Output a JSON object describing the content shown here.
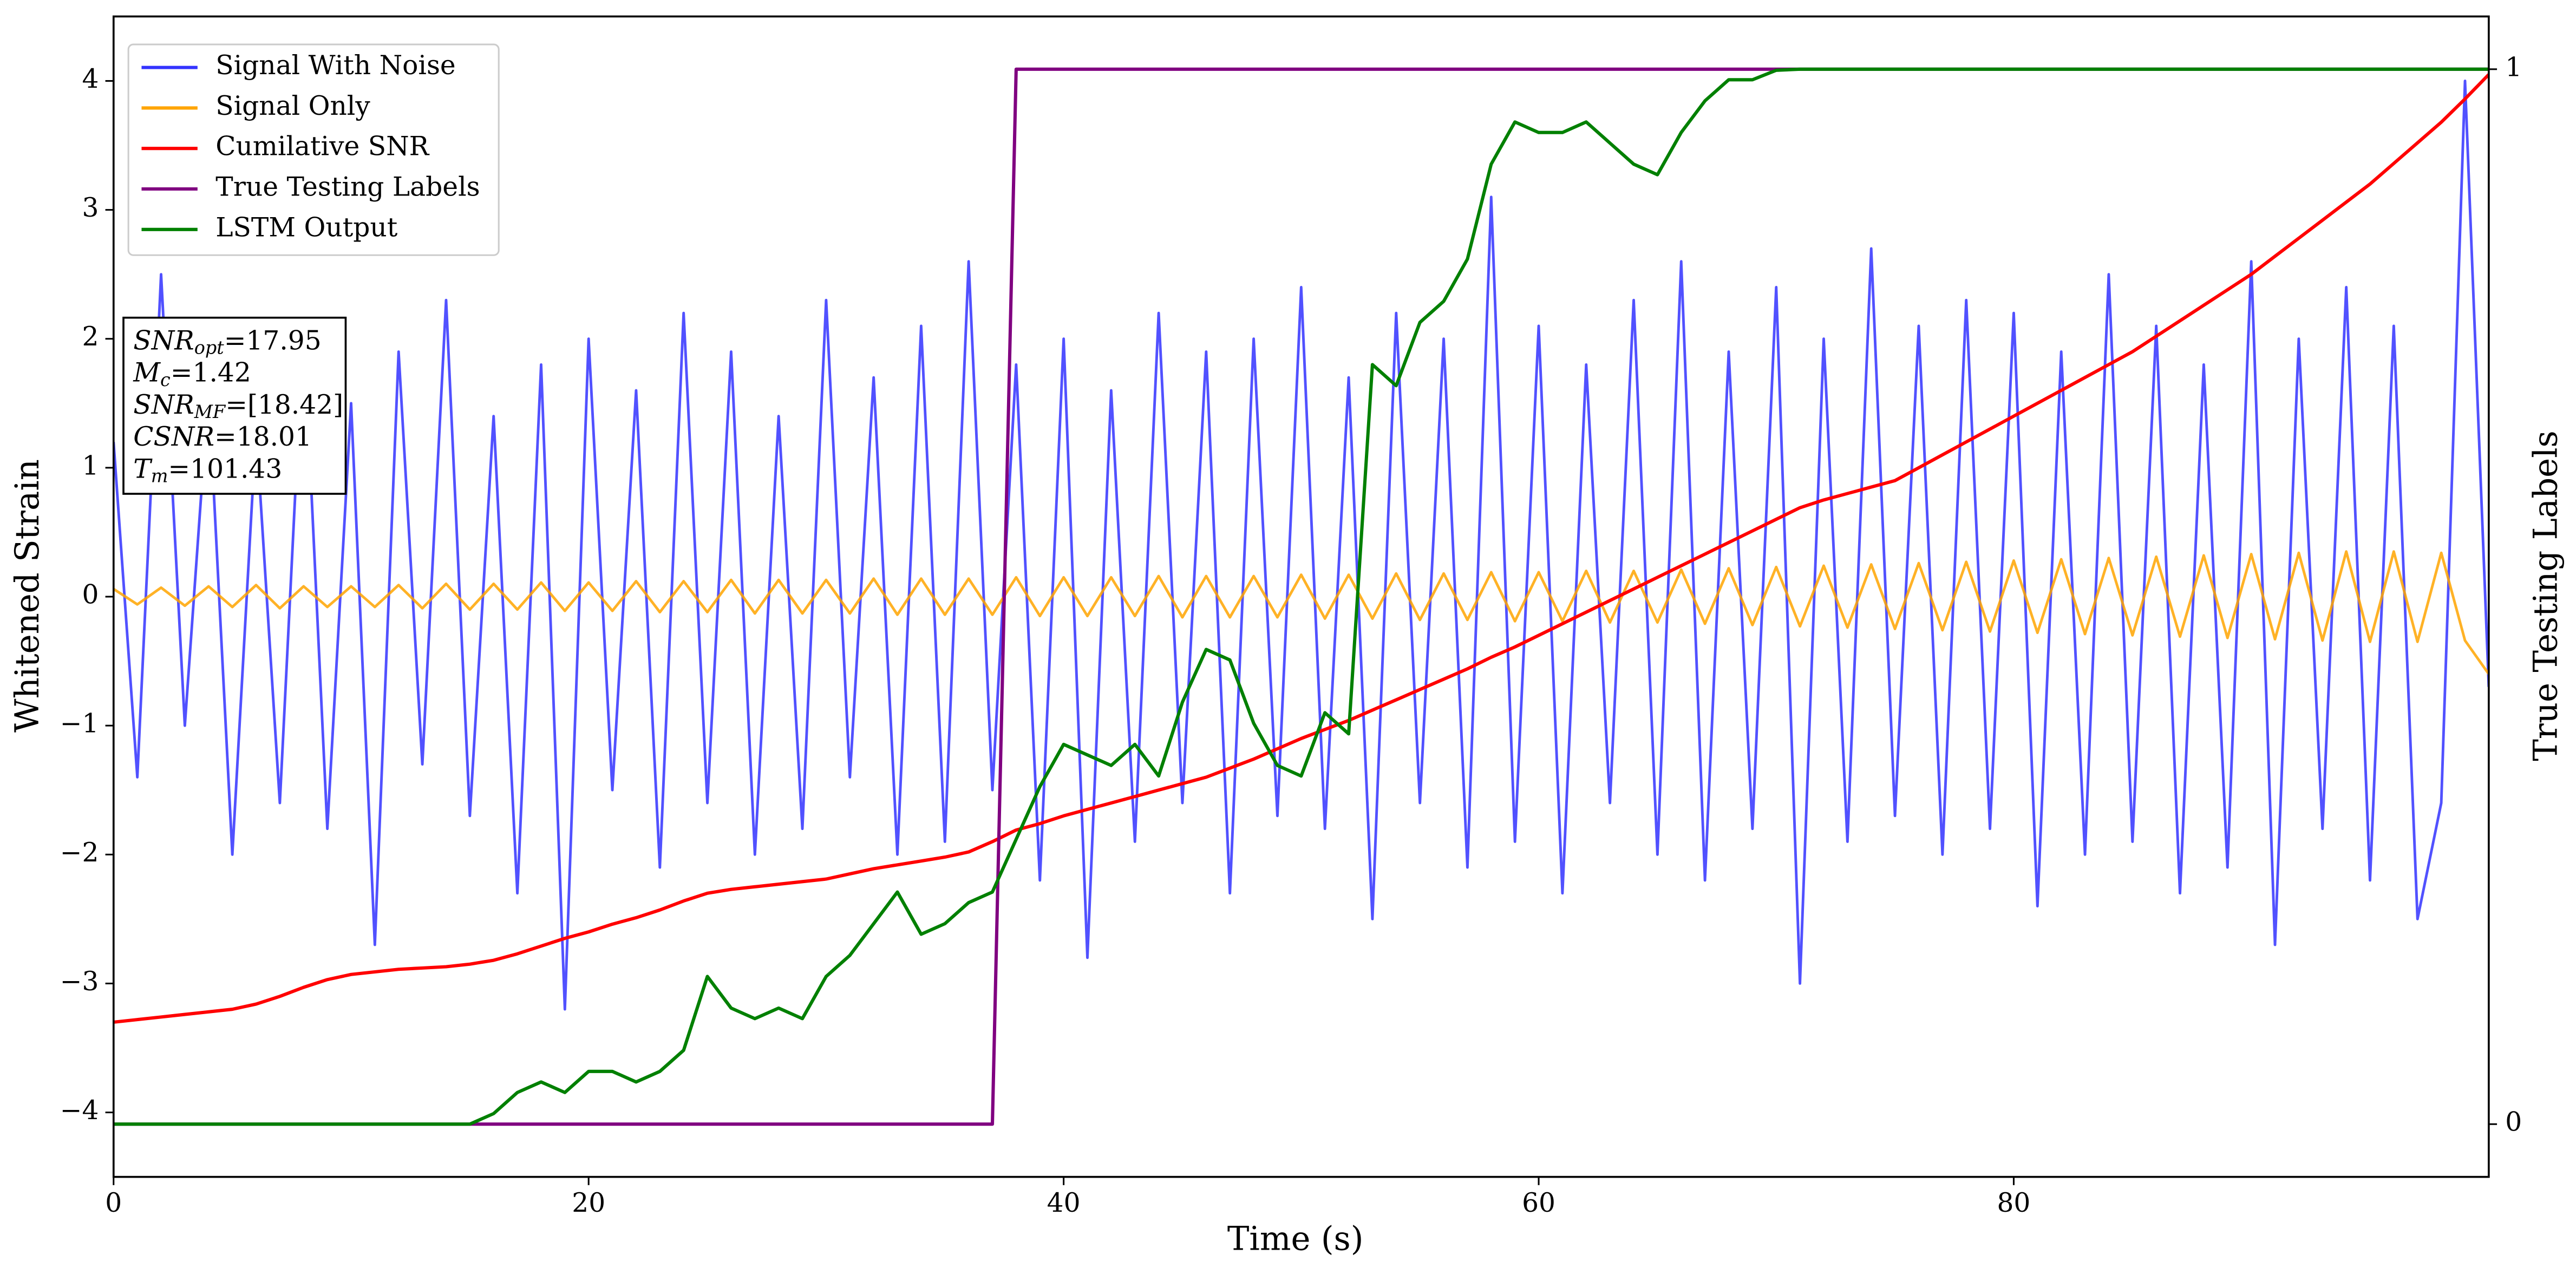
{
  "chart_data": {
    "type": "line",
    "xlabel": "Time (s)",
    "ylabel": "Whitened Strain",
    "y2label": "True Testing Labels",
    "xlim": [
      0,
      100
    ],
    "ylim": [
      -4.5,
      4.5
    ],
    "y2lim": [
      -0.05,
      1.05
    ],
    "xticks": [
      0,
      20,
      40,
      60,
      80
    ],
    "yticks": [
      {
        "value": -4,
        "label": "−4"
      },
      {
        "value": -3,
        "label": "−3"
      },
      {
        "value": -2,
        "label": "−2"
      },
      {
        "value": -1,
        "label": "−1"
      },
      0,
      1,
      2,
      3,
      4
    ],
    "y2ticks": [
      0,
      1
    ],
    "legend": "upper left",
    "x": [
      0,
      1,
      2,
      3,
      4,
      5,
      6,
      7,
      8,
      9,
      10,
      11,
      12,
      13,
      14,
      15,
      16,
      17,
      18,
      19,
      20,
      21,
      22,
      23,
      24,
      25,
      26,
      27,
      28,
      29,
      30,
      31,
      32,
      33,
      34,
      35,
      36,
      37,
      38,
      39,
      40,
      41,
      42,
      43,
      44,
      45,
      46,
      47,
      48,
      49,
      50,
      51,
      52,
      53,
      54,
      55,
      56,
      57,
      58,
      59,
      60,
      61,
      62,
      63,
      64,
      65,
      66,
      67,
      68,
      69,
      70,
      71,
      72,
      73,
      74,
      75,
      76,
      77,
      78,
      79,
      80,
      81,
      82,
      83,
      84,
      85,
      86,
      87,
      88,
      89,
      90,
      91,
      92,
      93,
      94,
      95,
      96,
      97,
      98,
      99,
      100
    ],
    "series": [
      {
        "name": "Signal With Noise",
        "color": "#3333ff",
        "values": [
          1.2,
          -1.4,
          2.5,
          -1.0,
          1.6,
          -2.0,
          1.3,
          -1.6,
          2.1,
          -1.8,
          1.5,
          -2.7,
          1.9,
          -1.3,
          2.3,
          -1.7,
          1.4,
          -2.3,
          1.8,
          -3.2,
          2.0,
          -1.5,
          1.6,
          -2.1,
          2.2,
          -1.6,
          1.9,
          -2.0,
          1.4,
          -1.8,
          2.3,
          -1.4,
          1.7,
          -2.0,
          2.1,
          -1.9,
          2.6,
          -1.5,
          1.8,
          -2.2,
          2.0,
          -2.8,
          1.6,
          -1.9,
          2.2,
          -1.6,
          1.9,
          -2.3,
          2.0,
          -1.7,
          2.4,
          -1.8,
          1.7,
          -2.5,
          2.2,
          -1.6,
          2.0,
          -2.1,
          3.1,
          -1.9,
          2.1,
          -2.3,
          1.8,
          -1.6,
          2.3,
          -2.0,
          2.6,
          -2.2,
          1.9,
          -1.8,
          2.4,
          -3.0,
          2.0,
          -1.9,
          2.7,
          -1.7,
          2.1,
          -2.0,
          2.3,
          -1.8,
          2.2,
          -2.4,
          1.9,
          -2.0,
          2.5,
          -1.9,
          2.1,
          -2.3,
          1.8,
          -2.1,
          2.6,
          -2.7,
          2.0,
          -1.8,
          2.4,
          -2.2,
          2.1,
          -2.5,
          -1.6,
          4.0,
          -0.7
        ]
      },
      {
        "name": "Signal Only",
        "color": "orange",
        "values": [
          0.06,
          -0.06,
          0.07,
          -0.07,
          0.08,
          -0.08,
          0.09,
          -0.09,
          0.08,
          -0.08,
          0.08,
          -0.08,
          0.09,
          -0.09,
          0.1,
          -0.1,
          0.1,
          -0.1,
          0.11,
          -0.11,
          0.11,
          -0.11,
          0.12,
          -0.12,
          0.12,
          -0.12,
          0.13,
          -0.13,
          0.13,
          -0.13,
          0.13,
          -0.13,
          0.14,
          -0.14,
          0.14,
          -0.14,
          0.14,
          -0.14,
          0.15,
          -0.15,
          0.15,
          -0.15,
          0.15,
          -0.15,
          0.16,
          -0.16,
          0.16,
          -0.16,
          0.16,
          -0.16,
          0.17,
          -0.17,
          0.17,
          -0.17,
          0.18,
          -0.18,
          0.18,
          -0.18,
          0.19,
          -0.19,
          0.19,
          -0.19,
          0.2,
          -0.2,
          0.2,
          -0.2,
          0.21,
          -0.21,
          0.22,
          -0.22,
          0.23,
          -0.23,
          0.24,
          -0.24,
          0.25,
          -0.25,
          0.26,
          -0.26,
          0.27,
          -0.27,
          0.28,
          -0.28,
          0.29,
          -0.29,
          0.3,
          -0.3,
          0.31,
          -0.31,
          0.32,
          -0.32,
          0.33,
          -0.33,
          0.34,
          -0.34,
          0.35,
          -0.35,
          0.35,
          -0.35,
          0.34,
          -0.34,
          -0.6
        ]
      },
      {
        "name": "Cumilative SNR",
        "color": "#ff0000",
        "values": [
          -3.3,
          -3.28,
          -3.26,
          -3.24,
          -3.22,
          -3.2,
          -3.16,
          -3.1,
          -3.03,
          -2.97,
          -2.93,
          -2.91,
          -2.89,
          -2.88,
          -2.87,
          -2.85,
          -2.82,
          -2.77,
          -2.71,
          -2.65,
          -2.6,
          -2.54,
          -2.49,
          -2.43,
          -2.36,
          -2.3,
          -2.27,
          -2.25,
          -2.23,
          -2.21,
          -2.19,
          -2.15,
          -2.11,
          -2.08,
          -2.05,
          -2.02,
          -1.98,
          -1.9,
          -1.81,
          -1.76,
          -1.7,
          -1.65,
          -1.6,
          -1.55,
          -1.5,
          -1.45,
          -1.4,
          -1.33,
          -1.26,
          -1.18,
          -1.1,
          -1.03,
          -0.96,
          -0.88,
          -0.8,
          -0.72,
          -0.64,
          -0.56,
          -0.47,
          -0.39,
          -0.3,
          -0.21,
          -0.12,
          -0.03,
          0.06,
          0.15,
          0.24,
          0.33,
          0.42,
          0.51,
          0.6,
          0.69,
          0.75,
          0.8,
          0.85,
          0.9,
          1.0,
          1.1,
          1.2,
          1.3,
          1.4,
          1.5,
          1.6,
          1.7,
          1.8,
          1.9,
          2.02,
          2.14,
          2.26,
          2.38,
          2.5,
          2.64,
          2.78,
          2.92,
          3.06,
          3.2,
          3.36,
          3.52,
          3.68,
          3.86,
          4.05
        ]
      },
      {
        "name": "True Testing Labels",
        "color": "#800080",
        "axis": "y2",
        "values": [
          0,
          0,
          0,
          0,
          0,
          0,
          0,
          0,
          0,
          0,
          0,
          0,
          0,
          0,
          0,
          0,
          0,
          0,
          0,
          0,
          0,
          0,
          0,
          0,
          0,
          0,
          0,
          0,
          0,
          0,
          0,
          0,
          0,
          0,
          0,
          0,
          0,
          0,
          1,
          1,
          1,
          1,
          1,
          1,
          1,
          1,
          1,
          1,
          1,
          1,
          1,
          1,
          1,
          1,
          1,
          1,
          1,
          1,
          1,
          1,
          1,
          1,
          1,
          1,
          1,
          1,
          1,
          1,
          1,
          1,
          1,
          1,
          1,
          1,
          1,
          1,
          1,
          1,
          1,
          1,
          1,
          1,
          1,
          1,
          1,
          1,
          1,
          1,
          1,
          1,
          1,
          1,
          1,
          1,
          1,
          1,
          1,
          1,
          1,
          1,
          1
        ]
      },
      {
        "name": "LSTM Output",
        "color": "#008000",
        "axis": "y2",
        "values": [
          0,
          0,
          0,
          0,
          0,
          0,
          0,
          0,
          0,
          0,
          0,
          0,
          0,
          0,
          0,
          0,
          0.01,
          0.03,
          0.04,
          0.03,
          0.05,
          0.05,
          0.04,
          0.05,
          0.07,
          0.14,
          0.11,
          0.1,
          0.11,
          0.1,
          0.14,
          0.16,
          0.19,
          0.22,
          0.18,
          0.19,
          0.21,
          0.22,
          0.27,
          0.32,
          0.36,
          0.35,
          0.34,
          0.36,
          0.33,
          0.4,
          0.45,
          0.44,
          0.38,
          0.34,
          0.33,
          0.39,
          0.37,
          0.72,
          0.7,
          0.76,
          0.78,
          0.82,
          0.91,
          0.95,
          0.94,
          0.94,
          0.95,
          0.93,
          0.91,
          0.9,
          0.94,
          0.97,
          0.99,
          0.99,
          0.999,
          1,
          1,
          1,
          1,
          1,
          1,
          1,
          1,
          1,
          1,
          1,
          1,
          1,
          1,
          1,
          1,
          1,
          1,
          1,
          1,
          1,
          1,
          1,
          1,
          1,
          1,
          1,
          1,
          1,
          1
        ]
      }
    ],
    "annotation": [
      {
        "symbol": "SNR",
        "subscript": "opt",
        "text": "=17.95"
      },
      {
        "symbol": "M",
        "subscript": "c",
        "text": "=1.42"
      },
      {
        "symbol": "SNR",
        "subscript": "MF",
        "text": "=[18.42]"
      },
      {
        "symbol": "CSNR",
        "text": "=18.01"
      },
      {
        "symbol": "T",
        "subscript": "m",
        "text": "=101.43"
      }
    ]
  }
}
